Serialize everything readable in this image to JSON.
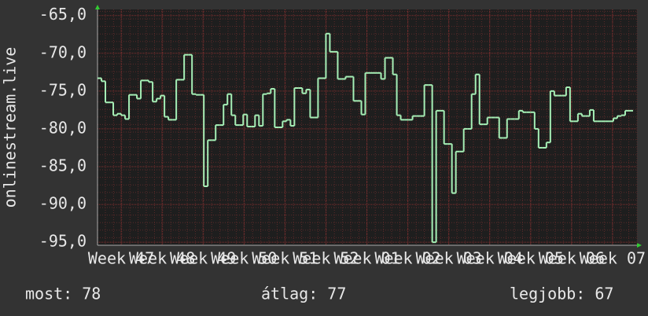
{
  "chart_data": {
    "type": "line",
    "y_label": "onlinestream.live",
    "color": "#a6f0b6",
    "grid": true,
    "xlim": [
      0,
      137
    ],
    "ylim": [
      -95.4,
      -64.2
    ],
    "yticks": [
      {
        "value": -65,
        "label": "-65,0"
      },
      {
        "value": -70,
        "label": "-70,0"
      },
      {
        "value": -75,
        "label": "-75,0"
      },
      {
        "value": -80,
        "label": "-80,0"
      },
      {
        "value": -85,
        "label": "-85,0"
      },
      {
        "value": -90,
        "label": "-90,0"
      },
      {
        "value": -95,
        "label": "-95,0"
      }
    ],
    "xticks": [
      {
        "value": 6,
        "label": "Week 47"
      },
      {
        "value": 16.4,
        "label": "Week 48"
      },
      {
        "value": 26.8,
        "label": "Week 49"
      },
      {
        "value": 37.2,
        "label": "Week 50"
      },
      {
        "value": 47.6,
        "label": "Week 51"
      },
      {
        "value": 58,
        "label": "Week 52"
      },
      {
        "value": 68.4,
        "label": "Week 01"
      },
      {
        "value": 78.8,
        "label": "Week 02"
      },
      {
        "value": 89.2,
        "label": "Week 03"
      },
      {
        "value": 99.6,
        "label": "Week 04"
      },
      {
        "value": 110,
        "label": "Week 05"
      },
      {
        "value": 120.4,
        "label": "Week 06"
      },
      {
        "value": 130.8,
        "label": "Week 07"
      }
    ],
    "values": [
      -73.3,
      -73.7,
      -76.5,
      -76.5,
      -78.2,
      -78.0,
      -78.2,
      -78.7,
      -75.5,
      -75.5,
      -76.0,
      -73.6,
      -73.6,
      -73.8,
      -76.4,
      -76.0,
      -75.6,
      -78.4,
      -78.8,
      -78.8,
      -73.5,
      -73.5,
      -70.2,
      -70.2,
      -75.4,
      -75.5,
      -75.5,
      -87.6,
      -81.5,
      -81.5,
      -79.5,
      -79.5,
      -76.8,
      -75.4,
      -78.2,
      -79.5,
      -79.5,
      -78.1,
      -79.7,
      -79.7,
      -78.2,
      -79.6,
      -75.4,
      -75.3,
      -74.7,
      -79.8,
      -79.8,
      -79.0,
      -78.8,
      -79.6,
      -74.6,
      -74.6,
      -75.3,
      -74.8,
      -78.5,
      -78.5,
      -73.3,
      -73.3,
      -67.4,
      -69.8,
      -69.8,
      -73.4,
      -73.4,
      -73.1,
      -73.1,
      -76.3,
      -76.3,
      -78.1,
      -72.6,
      -72.6,
      -72.6,
      -72.6,
      -73.4,
      -70.6,
      -70.6,
      -72.8,
      -78.2,
      -78.8,
      -78.8,
      -78.8,
      -78.3,
      -78.3,
      -78.3,
      -74.2,
      -74.2,
      -95.0,
      -77.6,
      -77.6,
      -82.0,
      -82.0,
      -88.5,
      -83.0,
      -83.0,
      -80.0,
      -80.0,
      -75.4,
      -72.8,
      -79.4,
      -79.4,
      -78.5,
      -78.5,
      -78.5,
      -81.2,
      -81.2,
      -78.7,
      -78.7,
      -78.7,
      -77.6,
      -77.8,
      -77.8,
      -77.8,
      -80.0,
      -82.5,
      -82.5,
      -81.8,
      -75.0,
      -75.6,
      -75.6,
      -75.6,
      -74.5,
      -79.0,
      -79.0,
      -78.0,
      -78.3,
      -78.3,
      -77.5,
      -79.0,
      -79.0,
      -79.0,
      -79.0,
      -79.0,
      -78.6,
      -78.3,
      -78.2,
      -77.6,
      -77.6
    ],
    "footer": [
      "most: 78",
      "átlag: 77",
      "legjobb: 67"
    ]
  }
}
